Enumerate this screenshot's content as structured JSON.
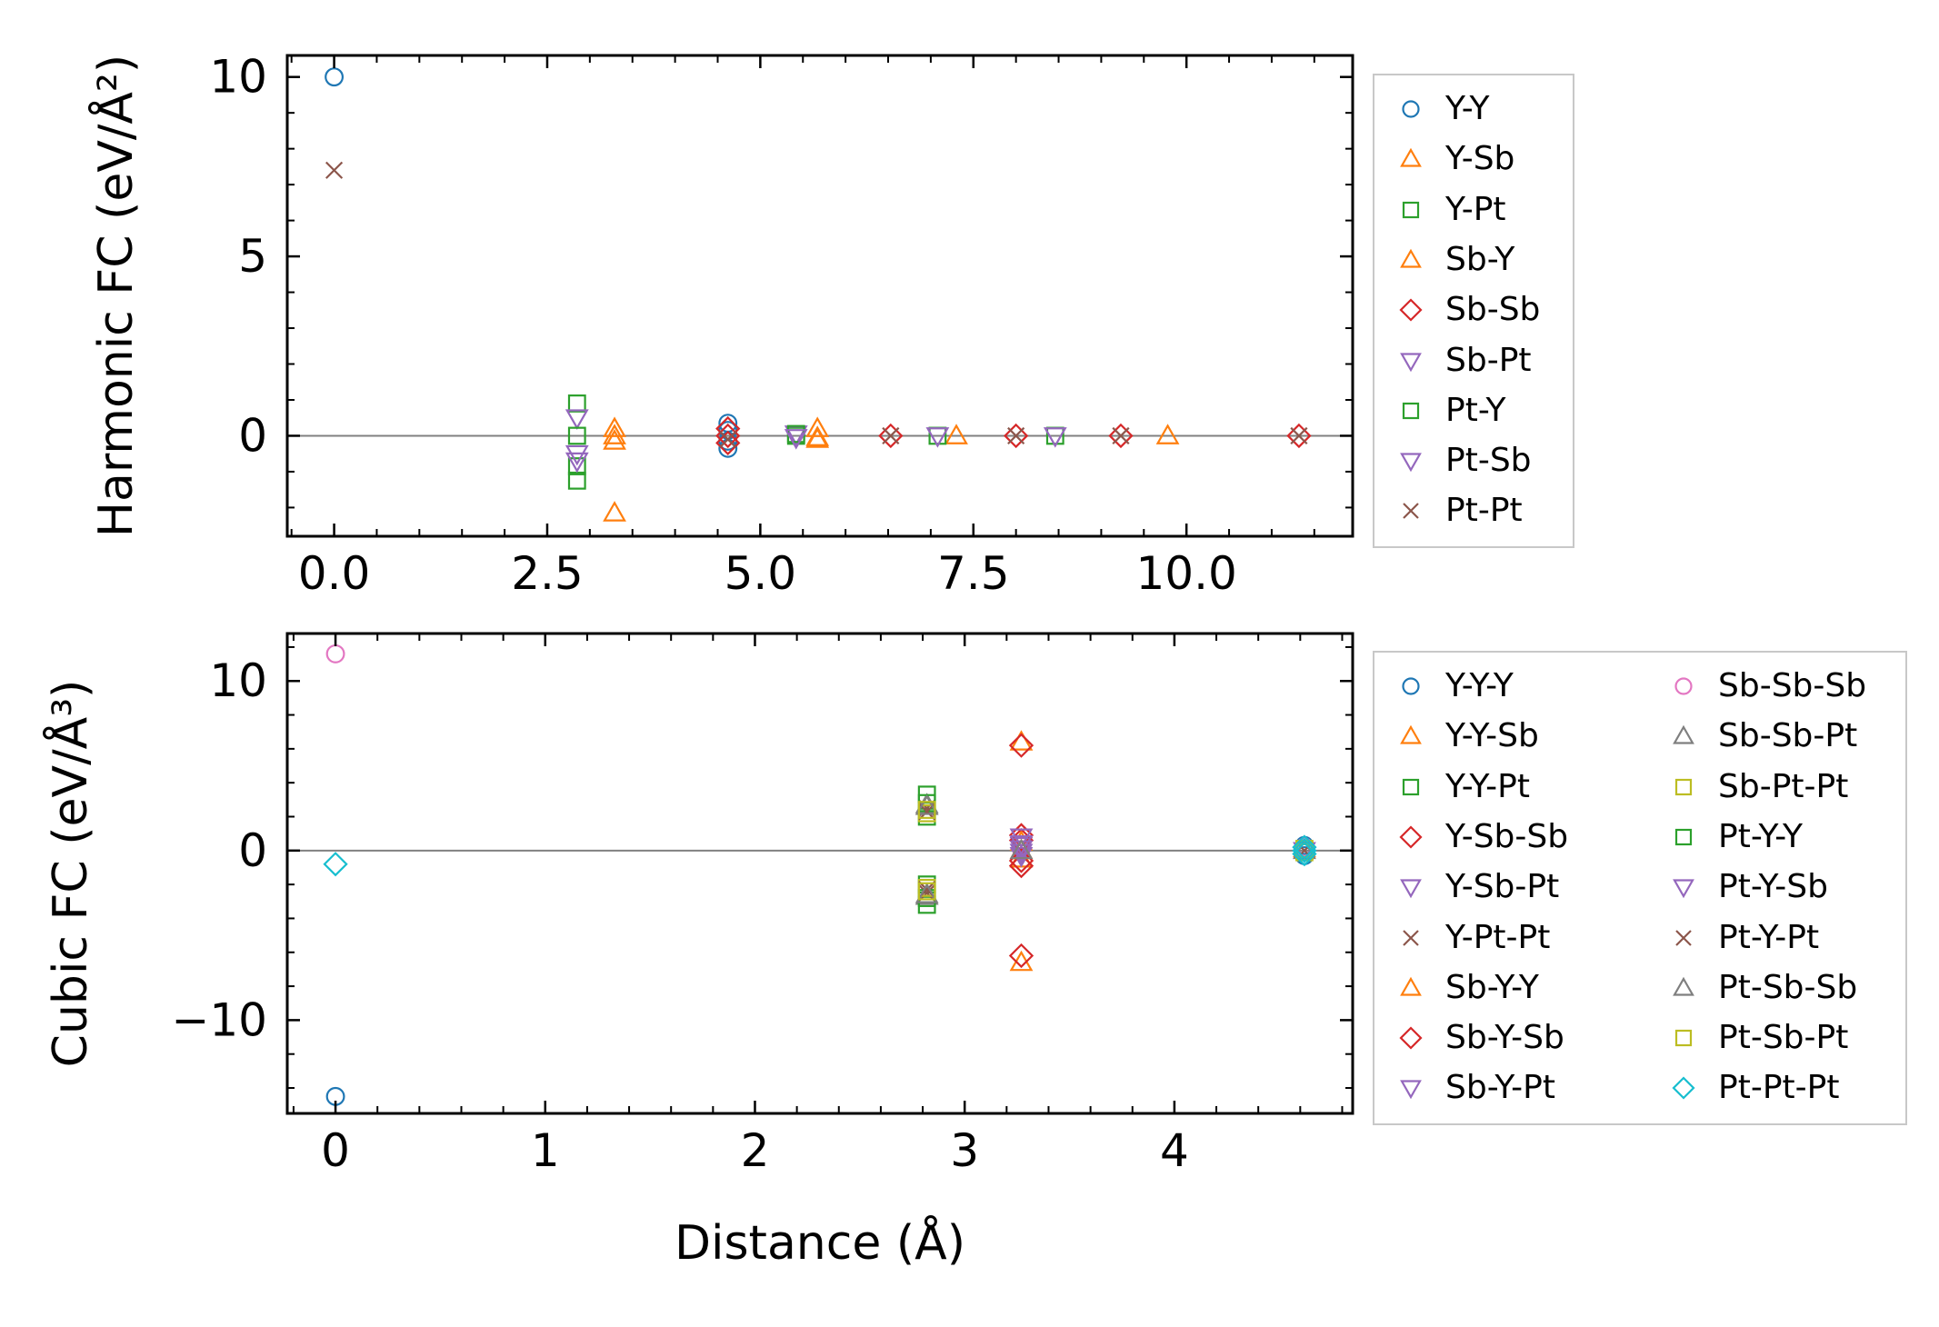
{
  "colors": {
    "Y-Y": "#1f77b4",
    "Y-Sb": "#ff7f0e",
    "Y-Pt": "#2ca02c",
    "Sb-Y": "#ff7f0e",
    "Sb-Sb": "#d62728",
    "Sb-Pt": "#9467bd",
    "Pt-Y": "#2ca02c",
    "Pt-Sb": "#9467bd",
    "Pt-Pt": "#8c564b",
    "zero_line": "#808080"
  },
  "chart_data": [
    {
      "type": "scatter",
      "title": "",
      "xlabel": "",
      "ylabel": "Harmonic FC (eV/Å²)",
      "xlim": [
        -0.55,
        11.95
      ],
      "ylim": [
        -2.8,
        10.6
      ],
      "xticks": [
        0.0,
        2.5,
        5.0,
        7.5,
        10.0
      ],
      "xtick_labels": [
        "0.0",
        "2.5",
        "5.0",
        "7.5",
        "10.0"
      ],
      "yticks": [
        0,
        5,
        10
      ],
      "ytick_labels": [
        "0",
        "5",
        "10"
      ],
      "grid": false,
      "legend_position": "outside-right",
      "series": [
        {
          "name": "Y-Y",
          "marker": "circle",
          "color": "#1f77b4",
          "points": [
            [
              0,
              10.0
            ],
            [
              4.62,
              0.35
            ],
            [
              4.62,
              -0.35
            ],
            [
              4.62,
              0.15
            ],
            [
              4.62,
              -0.15
            ]
          ]
        },
        {
          "name": "Y-Sb",
          "marker": "triangle-up",
          "color": "#ff7f0e",
          "points": [
            [
              3.29,
              0.2
            ],
            [
              3.29,
              -0.15
            ],
            [
              3.29,
              -2.15
            ],
            [
              5.67,
              0.2
            ],
            [
              5.67,
              -0.1
            ],
            [
              7.3,
              0.0
            ],
            [
              9.78,
              0.0
            ]
          ]
        },
        {
          "name": "Y-Pt",
          "marker": "square",
          "color": "#2ca02c",
          "points": [
            [
              2.85,
              0.9
            ],
            [
              2.85,
              -0.85
            ],
            [
              2.85,
              -1.25
            ],
            [
              5.42,
              0.0
            ],
            [
              7.08,
              0.0
            ],
            [
              8.46,
              0.0
            ]
          ]
        },
        {
          "name": "Sb-Y",
          "marker": "triangle-up",
          "color": "#ff7f0e",
          "points": [
            [
              3.29,
              0.0
            ],
            [
              5.67,
              -0.05
            ]
          ]
        },
        {
          "name": "Sb-Sb",
          "marker": "diamond",
          "color": "#d62728",
          "points": [
            [
              4.62,
              0.0
            ],
            [
              4.62,
              0.2
            ],
            [
              4.62,
              -0.2
            ],
            [
              6.53,
              0.0
            ],
            [
              8.0,
              0.0
            ],
            [
              9.23,
              0.0
            ],
            [
              11.32,
              0.0
            ]
          ]
        },
        {
          "name": "Sb-Pt",
          "marker": "triangle-down",
          "color": "#9467bd",
          "points": [
            [
              2.85,
              0.5
            ],
            [
              2.85,
              -0.5
            ],
            [
              5.42,
              0.05
            ],
            [
              7.08,
              0.0
            ],
            [
              8.46,
              0.0
            ]
          ]
        },
        {
          "name": "Pt-Y",
          "marker": "square",
          "color": "#2ca02c",
          "points": [
            [
              2.85,
              0.0
            ],
            [
              5.42,
              0.05
            ]
          ]
        },
        {
          "name": "Pt-Sb",
          "marker": "triangle-down",
          "color": "#9467bd",
          "points": [
            [
              2.85,
              -0.7
            ],
            [
              5.42,
              -0.05
            ]
          ]
        },
        {
          "name": "Pt-Pt",
          "marker": "x",
          "color": "#8c564b",
          "points": [
            [
              0,
              7.4
            ],
            [
              4.62,
              -0.1
            ],
            [
              6.53,
              0.0
            ],
            [
              8.0,
              0.0
            ],
            [
              9.23,
              0.0
            ],
            [
              11.32,
              0.0
            ]
          ]
        }
      ]
    },
    {
      "type": "scatter",
      "title": "",
      "xlabel": "Distance (Å)",
      "ylabel": "Cubic FC (eV/Å³)",
      "xlim": [
        -0.23,
        4.85
      ],
      "ylim": [
        -15.5,
        12.8
      ],
      "xticks": [
        0,
        1,
        2,
        3,
        4
      ],
      "xtick_labels": [
        "0",
        "1",
        "2",
        "3",
        "4"
      ],
      "yticks": [
        -10,
        0,
        10
      ],
      "ytick_labels": [
        "−10",
        "0",
        "10"
      ],
      "grid": false,
      "legend_position": "outside-right",
      "series": [
        {
          "name": "Y-Y-Y",
          "marker": "circle",
          "color": "#1f77b4",
          "points": [
            [
              0,
              -14.5
            ],
            [
              4.62,
              0.3
            ],
            [
              4.62,
              -0.3
            ]
          ]
        },
        {
          "name": "Y-Y-Sb",
          "marker": "triangle-up",
          "color": "#ff7f0e",
          "points": [
            [
              3.27,
              6.4
            ],
            [
              3.27,
              -6.6
            ],
            [
              3.27,
              0.5
            ],
            [
              3.27,
              -0.5
            ]
          ]
        },
        {
          "name": "Y-Y-Pt",
          "marker": "square",
          "color": "#2ca02c",
          "points": [
            [
              2.82,
              3.3
            ],
            [
              2.82,
              2.0
            ],
            [
              2.82,
              -2.0
            ],
            [
              2.82,
              -3.2
            ],
            [
              4.62,
              0.0
            ]
          ]
        },
        {
          "name": "Y-Sb-Sb",
          "marker": "diamond",
          "color": "#d62728",
          "points": [
            [
              3.27,
              6.2
            ],
            [
              3.27,
              -6.2
            ],
            [
              3.27,
              0.9
            ],
            [
              3.27,
              -0.9
            ]
          ]
        },
        {
          "name": "Y-Sb-Pt",
          "marker": "triangle-down",
          "color": "#9467bd",
          "points": [
            [
              3.27,
              0.3
            ],
            [
              3.27,
              -0.3
            ],
            [
              4.62,
              0.0
            ]
          ]
        },
        {
          "name": "Y-Pt-Pt",
          "marker": "x",
          "color": "#8c564b",
          "points": [
            [
              2.82,
              2.5
            ],
            [
              2.82,
              -2.5
            ],
            [
              4.62,
              0.0
            ]
          ]
        },
        {
          "name": "Sb-Y-Y",
          "marker": "triangle-up",
          "color": "#ff7f0e",
          "points": [
            [
              3.27,
              0.0
            ],
            [
              4.62,
              0.1
            ]
          ]
        },
        {
          "name": "Sb-Y-Sb",
          "marker": "diamond",
          "color": "#d62728",
          "points": [
            [
              3.27,
              0.6
            ],
            [
              3.27,
              -0.6
            ]
          ]
        },
        {
          "name": "Sb-Y-Pt",
          "marker": "triangle-down",
          "color": "#9467bd",
          "points": [
            [
              3.27,
              0.8
            ],
            [
              3.27,
              0.1
            ]
          ]
        },
        {
          "name": "Sb-Sb-Sb",
          "marker": "circle",
          "color": "#e377c2",
          "points": [
            [
              0,
              11.6
            ],
            [
              4.62,
              0.2
            ]
          ]
        },
        {
          "name": "Sb-Sb-Pt",
          "marker": "triangle-up",
          "color": "#7f7f7f",
          "points": [
            [
              2.82,
              2.7
            ],
            [
              2.82,
              -2.7
            ],
            [
              4.62,
              0.0
            ]
          ]
        },
        {
          "name": "Sb-Pt-Pt",
          "marker": "square",
          "color": "#bcbd22",
          "points": [
            [
              2.82,
              2.2
            ],
            [
              2.82,
              -2.2
            ],
            [
              4.62,
              -0.1
            ]
          ]
        },
        {
          "name": "Pt-Y-Y",
          "marker": "square",
          "color": "#2ca02c",
          "points": [
            [
              2.82,
              2.8
            ],
            [
              2.82,
              -2.8
            ]
          ]
        },
        {
          "name": "Pt-Y-Sb",
          "marker": "triangle-down",
          "color": "#9467bd",
          "points": [
            [
              3.27,
              0.4
            ],
            [
              3.27,
              -0.1
            ]
          ]
        },
        {
          "name": "Pt-Y-Pt",
          "marker": "x",
          "color": "#8c564b",
          "points": [
            [
              2.82,
              2.3
            ],
            [
              2.82,
              -2.3
            ]
          ]
        },
        {
          "name": "Pt-Sb-Sb",
          "marker": "triangle-up",
          "color": "#7f7f7f",
          "points": [
            [
              2.82,
              2.6
            ],
            [
              2.82,
              -2.6
            ],
            [
              3.27,
              0.0
            ]
          ]
        },
        {
          "name": "Pt-Sb-Pt",
          "marker": "square",
          "color": "#bcbd22",
          "points": [
            [
              2.82,
              2.4
            ],
            [
              2.82,
              -2.4
            ],
            [
              4.62,
              0.1
            ]
          ]
        },
        {
          "name": "Pt-Pt-Pt",
          "marker": "diamond",
          "color": "#17becf",
          "points": [
            [
              0,
              -0.8
            ],
            [
              4.62,
              0.0
            ],
            [
              4.62,
              -0.2
            ],
            [
              4.62,
              0.2
            ]
          ]
        }
      ]
    }
  ]
}
